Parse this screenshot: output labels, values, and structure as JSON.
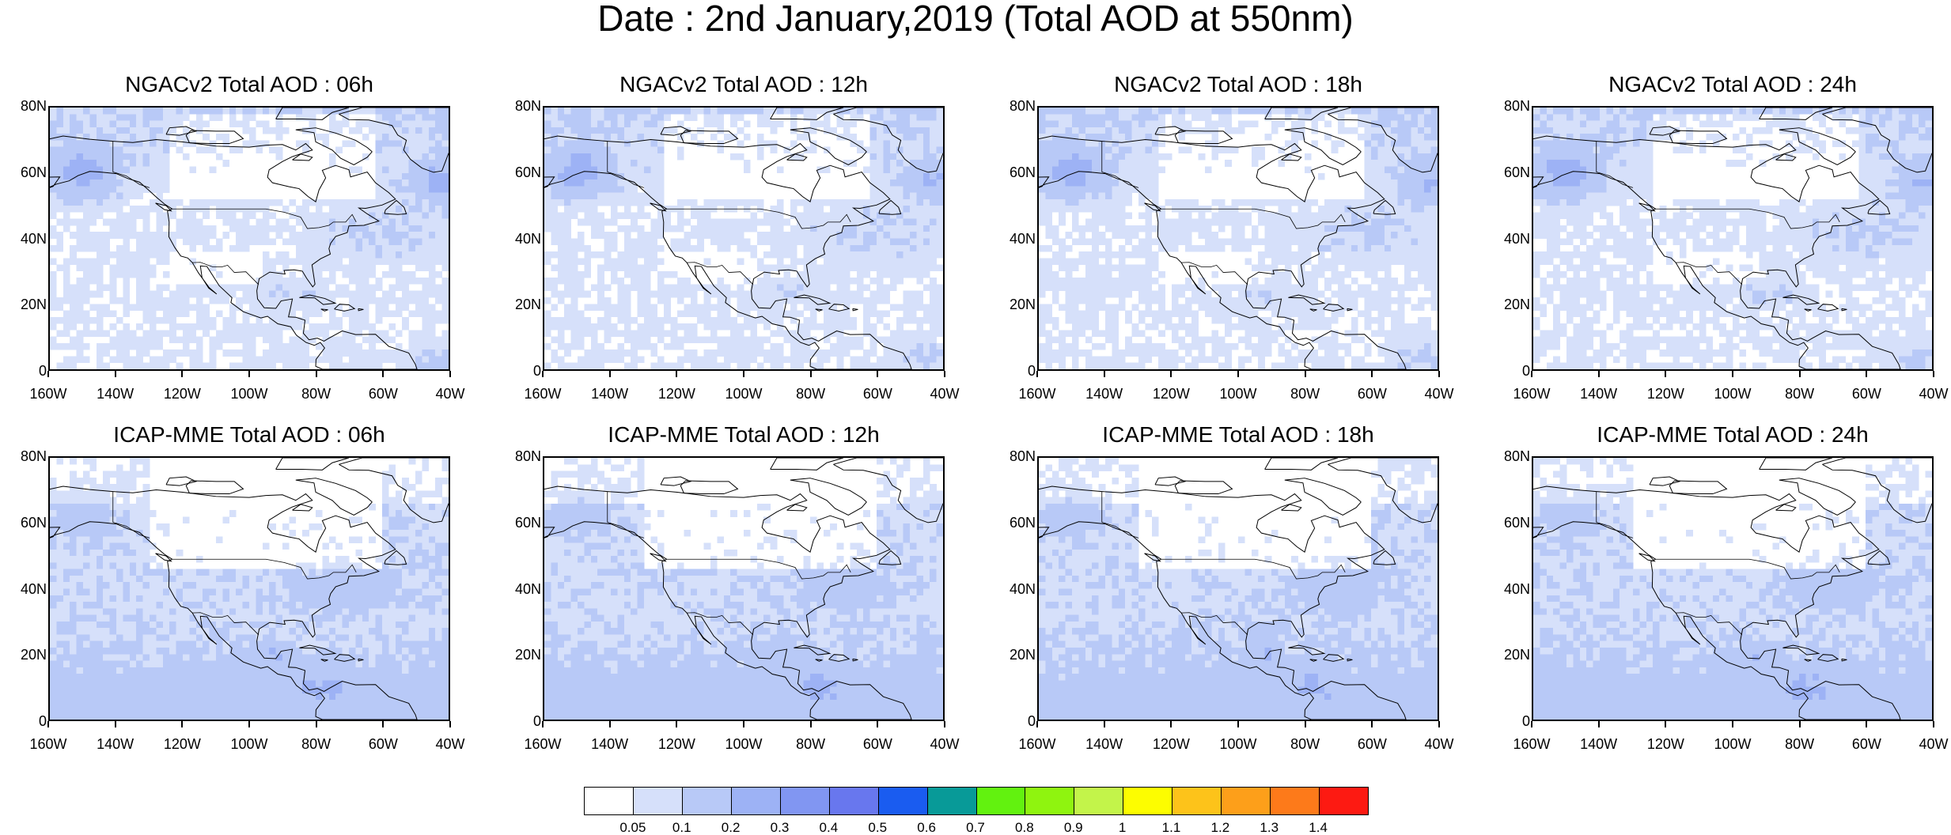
{
  "main_title": "Date : 2nd January,2019 (Total AOD at 550nm)",
  "axes": {
    "y_ticks": [
      "80N",
      "60N",
      "40N",
      "20N",
      "0"
    ],
    "x_ticks": [
      "160W",
      "140W",
      "120W",
      "100W",
      "80W",
      "60W",
      "40W"
    ]
  },
  "panels": [
    {
      "title": "NGACv2 Total AOD : 06h",
      "model": "ngac",
      "hour": 6
    },
    {
      "title": "NGACv2 Total AOD : 12h",
      "model": "ngac",
      "hour": 12
    },
    {
      "title": "NGACv2 Total AOD : 18h",
      "model": "ngac",
      "hour": 18
    },
    {
      "title": "NGACv2 Total AOD : 24h",
      "model": "ngac",
      "hour": 24
    },
    {
      "title": "ICAP-MME Total AOD : 06h",
      "model": "icap",
      "hour": 6
    },
    {
      "title": "ICAP-MME Total AOD : 12h",
      "model": "icap",
      "hour": 12
    },
    {
      "title": "ICAP-MME Total AOD : 18h",
      "model": "icap",
      "hour": 18
    },
    {
      "title": "ICAP-MME Total AOD : 24h",
      "model": "icap",
      "hour": 24
    }
  ],
  "colorbar": {
    "labels": [
      "0.05",
      "0.1",
      "0.2",
      "0.3",
      "0.4",
      "0.5",
      "0.6",
      "0.7",
      "0.8",
      "0.9",
      "1",
      "1.1",
      "1.2",
      "1.3",
      "1.4"
    ],
    "colors": [
      "#ffffff",
      "#d6e0fa",
      "#b8c9f7",
      "#9db2f5",
      "#8196f2",
      "#6877ee",
      "#1a5cf0",
      "#089a98",
      "#62f20f",
      "#8ff40f",
      "#c3f44a",
      "#fdfd00",
      "#fdc31a",
      "#fd9f1a",
      "#fd7a1a",
      "#fd1a12"
    ]
  }
}
